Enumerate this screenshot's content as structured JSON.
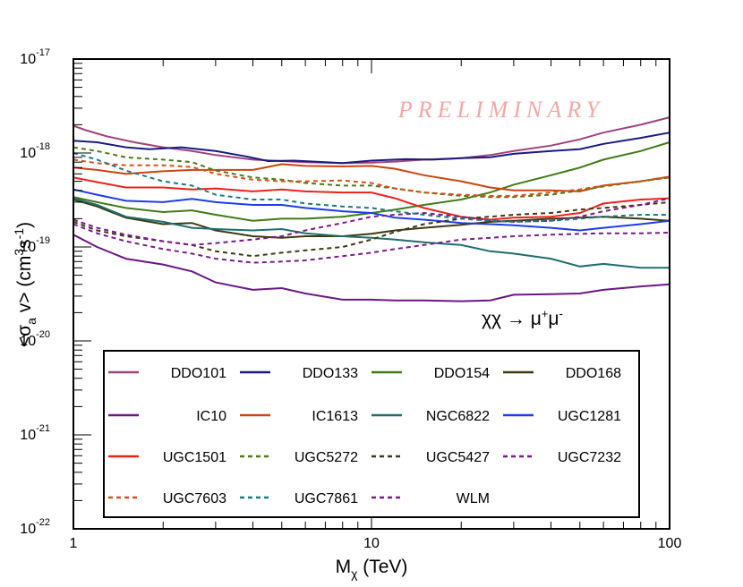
{
  "chart_data": {
    "type": "line",
    "title": "",
    "watermark": "PRELIMINARY",
    "annotation": {
      "base": "χχ → μ",
      "sup1": "+",
      "mid": "μ",
      "sup2": "-"
    },
    "xlabel": {
      "main": "M",
      "sub": "χ",
      "rest": " (TeV)"
    },
    "ylabel": {
      "p1": "<σ",
      "sub": "a",
      "p2": " v> (cm",
      "sup1": "3",
      "p3": "s",
      "sup2": "-1",
      "p4": ")"
    },
    "xscale": "log",
    "yscale": "log",
    "xlim": [
      1,
      100
    ],
    "ylim": [
      1e-22,
      1e-17
    ],
    "x_ticks": [
      {
        "value": 1,
        "label": "1"
      },
      {
        "value": 10,
        "label": "10"
      },
      {
        "value": 100,
        "label": "100"
      }
    ],
    "y_ticks": [
      {
        "value": 1e-22,
        "mant": "10",
        "exp": "-22"
      },
      {
        "value": 1e-21,
        "mant": "10",
        "exp": "-21"
      },
      {
        "value": 1e-20,
        "mant": "10",
        "exp": "-20"
      },
      {
        "value": 1e-19,
        "mant": "10",
        "exp": "-19"
      },
      {
        "value": 1e-18,
        "mant": "10",
        "exp": "-18"
      },
      {
        "value": 1e-17,
        "mant": "10",
        "exp": "-17"
      }
    ],
    "legend_position": "bottom",
    "series": [
      {
        "name": "DDO101",
        "color": "#a0437e",
        "dash": false,
        "x": [
          1,
          1.1,
          1.3,
          1.6,
          2,
          2.5,
          3,
          4,
          5,
          6,
          8,
          10,
          12,
          15,
          20,
          25,
          30,
          40,
          50,
          60,
          80,
          100
        ],
        "y": [
          1.95e-18,
          1.75e-18,
          1.5e-18,
          1.3e-18,
          1.15e-18,
          1.05e-18,
          9.5e-19,
          8.5e-19,
          8.2e-19,
          8e-19,
          7.8e-19,
          7.9e-19,
          8.1e-19,
          8.5e-19,
          8.8e-19,
          9.5e-19,
          1.05e-18,
          1.2e-18,
          1.4e-18,
          1.65e-18,
          2e-18,
          2.4e-18
        ]
      },
      {
        "name": "DDO133",
        "color": "#1a1a80",
        "dash": false,
        "x": [
          1,
          1.2,
          1.5,
          1.8,
          2.3,
          3,
          3.8,
          4.5,
          5.5,
          7,
          8,
          10,
          13,
          16,
          20,
          25,
          30,
          40,
          50,
          60,
          80,
          100
        ],
        "y": [
          1.35e-18,
          1.3e-18,
          1.15e-18,
          1.1e-18,
          1.15e-18,
          1.05e-18,
          9.2e-19,
          8.2e-19,
          8.3e-19,
          8e-19,
          7.8e-19,
          8.3e-19,
          8.6e-19,
          8.5e-19,
          8.8e-19,
          9e-19,
          9.8e-19,
          1.05e-18,
          1.1e-18,
          1.25e-18,
          1.45e-18,
          1.65e-18
        ]
      },
      {
        "name": "DDO154",
        "color": "#417b18",
        "dash": false,
        "x": [
          1,
          1.2,
          1.5,
          2,
          2.5,
          3,
          4,
          5,
          6,
          8,
          10,
          12,
          15,
          20,
          25,
          30,
          40,
          50,
          60,
          80,
          100
        ],
        "y": [
          3.4e-19,
          3e-19,
          2.6e-19,
          2.35e-19,
          2.45e-19,
          2.2e-19,
          1.9e-19,
          2e-19,
          2e-19,
          2.1e-19,
          2.3e-19,
          2.5e-19,
          2.8e-19,
          3.2e-19,
          3.8e-19,
          4.6e-19,
          5.8e-19,
          7e-19,
          8.5e-19,
          1.05e-18,
          1.3e-18
        ]
      },
      {
        "name": "DDO168",
        "color": "#3b3a10",
        "dash": false,
        "x": [
          1,
          1.2,
          1.5,
          2,
          2.5,
          3,
          4,
          5,
          6,
          8,
          10,
          12,
          15,
          20,
          25,
          30,
          40,
          50,
          60,
          80,
          100
        ],
        "y": [
          3.2e-19,
          2.7e-19,
          2.05e-19,
          1.75e-19,
          1.8e-19,
          1.5e-19,
          1.3e-19,
          1.25e-19,
          1.3e-19,
          1.3e-19,
          1.38e-19,
          1.5e-19,
          1.6e-19,
          1.72e-19,
          1.85e-19,
          1.9e-19,
          2e-19,
          2.05e-19,
          2.1e-19,
          2e-19,
          1.9e-19
        ]
      },
      {
        "name": "IC10",
        "color": "#6b1785",
        "dash": false,
        "x": [
          1,
          1.2,
          1.5,
          2,
          2.5,
          3,
          4,
          5,
          6,
          8,
          10,
          12,
          15,
          20,
          25,
          30,
          40,
          50,
          60,
          80,
          100
        ],
        "y": [
          1.35e-19,
          1e-19,
          7.5e-20,
          6.5e-20,
          5.5e-20,
          4.2e-20,
          3.5e-20,
          3.65e-20,
          3.2e-20,
          2.75e-20,
          2.75e-20,
          2.7e-20,
          2.7e-20,
          2.65e-20,
          2.7e-20,
          3.1e-20,
          3.15e-20,
          3.2e-20,
          3.5e-20,
          3.8e-20,
          4e-20
        ]
      },
      {
        "name": "IC1613",
        "color": "#cc4410",
        "dash": false,
        "x": [
          1,
          1.2,
          1.5,
          2,
          2.5,
          3,
          4,
          5,
          6,
          8,
          10,
          12,
          15,
          20,
          25,
          30,
          40,
          50,
          60,
          80,
          100
        ],
        "y": [
          7e-19,
          6.6e-19,
          6e-19,
          6.4e-19,
          6.6e-19,
          6.6e-19,
          6.6e-19,
          7.6e-19,
          7.3e-19,
          7.2e-19,
          7.3e-19,
          6.8e-19,
          5.8e-19,
          5e-19,
          4.3e-19,
          4e-19,
          4e-19,
          3.9e-19,
          4.5e-19,
          5e-19,
          5.6e-19
        ]
      },
      {
        "name": "NGC6822",
        "color": "#1f6e6e",
        "dash": false,
        "x": [
          1,
          1.2,
          1.5,
          2,
          2.5,
          3,
          4,
          5,
          6,
          8,
          10,
          12,
          15,
          20,
          25,
          30,
          40,
          50,
          60,
          80,
          100
        ],
        "y": [
          3.3e-19,
          2.8e-19,
          2.1e-19,
          1.85e-19,
          1.6e-19,
          1.55e-19,
          1.5e-19,
          1.55e-19,
          1.4e-19,
          1.3e-19,
          1.25e-19,
          1.2e-19,
          1.12e-19,
          1.05e-19,
          9e-20,
          8.5e-20,
          7.5e-20,
          6.2e-20,
          6.6e-20,
          6e-20,
          6e-20
        ]
      },
      {
        "name": "UGC1281",
        "color": "#1e3ce8",
        "dash": false,
        "x": [
          1,
          1.2,
          1.5,
          2,
          2.5,
          3,
          4,
          5,
          6,
          8,
          10,
          12,
          15,
          20,
          25,
          30,
          40,
          50,
          60,
          80,
          100
        ],
        "y": [
          4.1e-19,
          3.6e-19,
          3.1e-19,
          3e-19,
          3.25e-19,
          3e-19,
          2.8e-19,
          2.8e-19,
          2.6e-19,
          2.4e-19,
          2.3e-19,
          2.05e-19,
          1.95e-19,
          1.8e-19,
          1.75e-19,
          1.7e-19,
          1.6e-19,
          1.5e-19,
          1.6e-19,
          1.75e-19,
          1.9e-19
        ]
      },
      {
        "name": "UGC1501",
        "color": "#e8231c",
        "dash": false,
        "x": [
          1,
          1.2,
          1.5,
          2,
          2.5,
          3,
          4,
          5,
          6,
          8,
          10,
          12,
          15,
          20,
          25,
          30,
          40,
          50,
          60,
          80,
          100
        ],
        "y": [
          5.5e-19,
          4.9e-19,
          4.3e-19,
          4.3e-19,
          4.1e-19,
          4.2e-19,
          3.9e-19,
          4.1e-19,
          3.9e-19,
          3.8e-19,
          3.8e-19,
          3.3e-19,
          2.6e-19,
          2.1e-19,
          1.95e-19,
          2.05e-19,
          2.1e-19,
          2.3e-19,
          2.9e-19,
          3.2e-19,
          3.3e-19
        ]
      },
      {
        "name": "UGC5272",
        "color": "#4e7a1c",
        "dash": true,
        "x": [
          1,
          1.2,
          1.5,
          2,
          2.5,
          3,
          4,
          5,
          6,
          8,
          10,
          12,
          15,
          20,
          25,
          30,
          40,
          50,
          60,
          80,
          100
        ],
        "y": [
          1.15e-18,
          1.05e-18,
          9e-19,
          8.5e-19,
          8e-19,
          6.5e-19,
          5.5e-19,
          5.2e-19,
          4.8e-19,
          4.5e-19,
          4.5e-19,
          4.2e-19,
          3.8e-19,
          3.5e-19,
          3.4e-19,
          3.4e-19,
          3.6e-19,
          4e-19,
          4.4e-19,
          5e-19,
          5.5e-19
        ]
      },
      {
        "name": "UGC5427",
        "color": "#3d3a12",
        "dash": true,
        "x": [
          1,
          1.2,
          1.5,
          2,
          2.5,
          3,
          4,
          5,
          6,
          8,
          10,
          12,
          15,
          20,
          25,
          30,
          40,
          50,
          60,
          80,
          100
        ],
        "y": [
          1.85e-19,
          1.5e-19,
          1.3e-19,
          1.15e-19,
          1.05e-19,
          9e-20,
          8e-20,
          8.7e-20,
          9.2e-20,
          1e-19,
          1.2e-19,
          1.45e-19,
          1.75e-19,
          2e-19,
          2.1e-19,
          2.2e-19,
          2.3e-19,
          2.5e-19,
          2.6e-19,
          2.8e-19,
          3e-19
        ]
      },
      {
        "name": "UGC7232",
        "color": "#7a1b8a",
        "dash": true,
        "x": [
          1,
          1.2,
          1.5,
          2,
          2.5,
          3,
          4,
          5,
          6,
          8,
          10,
          12,
          15,
          20,
          25,
          30,
          40,
          50,
          60,
          80,
          100
        ],
        "y": [
          1.95e-19,
          1.6e-19,
          1.35e-19,
          1.15e-19,
          1.05e-19,
          1.1e-19,
          1.2e-19,
          1.3e-19,
          1.5e-19,
          1.8e-19,
          2.1e-19,
          2.2e-19,
          2.3e-19,
          2.1e-19,
          1.9e-19,
          1.85e-19,
          1.9e-19,
          2.1e-19,
          2.4e-19,
          2.8e-19,
          3.3e-19
        ]
      },
      {
        "name": "UGC7603",
        "color": "#d5521a",
        "dash": true,
        "x": [
          1,
          1.2,
          1.5,
          2,
          2.5,
          3,
          4,
          5,
          6,
          8,
          10,
          12,
          15,
          20,
          25,
          30,
          40,
          50,
          60,
          80,
          100
        ],
        "y": [
          8.5e-19,
          7.8e-19,
          7.4e-19,
          7.4e-19,
          7.1e-19,
          6e-19,
          5.2e-19,
          5e-19,
          5e-19,
          5.1e-19,
          4.8e-19,
          4.2e-19,
          3.8e-19,
          3.6e-19,
          3.5e-19,
          3.5e-19,
          3.8e-19,
          4.1e-19,
          4.5e-19,
          5e-19,
          5.5e-19
        ]
      },
      {
        "name": "UGC7861",
        "color": "#1c7a80",
        "dash": true,
        "x": [
          1,
          1.2,
          1.5,
          2,
          2.5,
          3,
          4,
          5,
          6,
          8,
          10,
          12,
          15,
          20,
          25,
          30,
          40,
          50,
          60,
          80,
          100
        ],
        "y": [
          1e-18,
          8.5e-19,
          6.5e-19,
          5e-19,
          4.5e-19,
          3.6e-19,
          3.2e-19,
          3.2e-19,
          2.9e-19,
          2.7e-19,
          2.6e-19,
          2.4e-19,
          2.2e-19,
          2e-19,
          1.9e-19,
          1.85e-19,
          1.9e-19,
          2e-19,
          2.1e-19,
          2.2e-19,
          2.2e-19
        ]
      },
      {
        "name": "WLM",
        "color": "#7a1b8a",
        "dash": true,
        "x": [
          1,
          1.2,
          1.5,
          2,
          2.5,
          3,
          4,
          5,
          6,
          8,
          10,
          12,
          15,
          20,
          25,
          30,
          40,
          50,
          60,
          80,
          100
        ],
        "y": [
          1.75e-19,
          1.4e-19,
          1.15e-19,
          9.5e-20,
          8.5e-20,
          7.5e-20,
          6.8e-20,
          7e-20,
          7.2e-20,
          8e-20,
          8.7e-20,
          9.5e-20,
          1.05e-19,
          1.2e-19,
          1.25e-19,
          1.3e-19,
          1.35e-19,
          1.38e-19,
          1.4e-19,
          1.4e-19,
          1.42e-19
        ]
      }
    ]
  }
}
